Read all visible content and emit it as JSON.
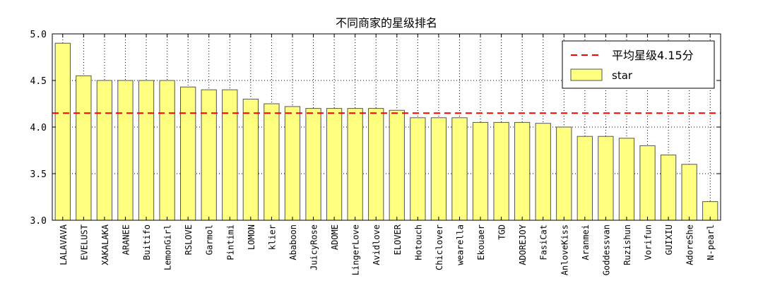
{
  "chart_data": {
    "type": "bar",
    "title": "不同商家的星级排名",
    "xlabel": "",
    "ylabel": "",
    "ylim": [
      3.0,
      5.0
    ],
    "yticks": [
      "3.0",
      "3.5",
      "4.0",
      "4.5",
      "5.0"
    ],
    "grid": true,
    "legend_position": "top-right",
    "categories": [
      "LALAVAVA",
      "EVELUST",
      "XAKALAKA",
      "ARANEE",
      "Buitifo",
      "LemonGirl",
      "RSLOVE",
      "Garmol",
      "Pintimi",
      "LOMON",
      "klier",
      "Ababoon",
      "JuicyRose",
      "ADOME",
      "LingerLove",
      "Avidlove",
      "ELOVER",
      "Hotouch",
      "Chiclover",
      "wearella",
      "Ekouaer",
      "TGD",
      "ADOREJOY",
      "FasiCat",
      "AnloveKiss",
      "Aranmei",
      "Goddessvan",
      "Ruzishun",
      "Vorifun",
      "GUIXIU",
      "AdoreShe",
      "N-pearl"
    ],
    "series": [
      {
        "name": "star",
        "color": "#ffff80",
        "values": [
          4.9,
          4.55,
          4.5,
          4.5,
          4.5,
          4.5,
          4.43,
          4.4,
          4.4,
          4.3,
          4.25,
          4.22,
          4.2,
          4.2,
          4.2,
          4.2,
          4.18,
          4.1,
          4.1,
          4.1,
          4.05,
          4.05,
          4.05,
          4.04,
          4.0,
          3.9,
          3.9,
          3.88,
          3.8,
          3.7,
          3.6,
          3.2
        ]
      }
    ],
    "reference_line": {
      "label": "平均星级4.15分",
      "value": 4.15,
      "color": "#ff0000"
    }
  }
}
